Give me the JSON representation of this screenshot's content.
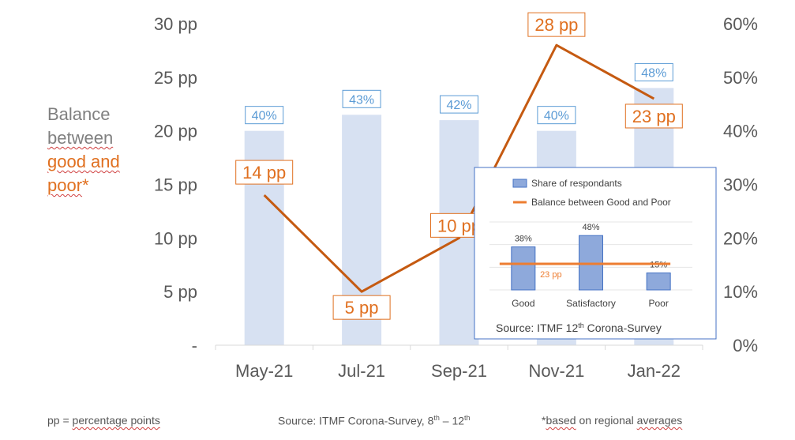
{
  "chart_data": {
    "type": "bar+line",
    "categories": [
      "May-21",
      "Jul-21",
      "Sep-21",
      "Nov-21",
      "Jan-22"
    ],
    "series": [
      {
        "name": "Share of respondants",
        "axis": "right",
        "values": [
          40,
          43,
          42,
          40,
          48
        ],
        "labels": [
          "40%",
          "43%",
          "42%",
          "40%",
          "48%"
        ]
      },
      {
        "name": "Balance between Good and Poor",
        "axis": "left",
        "values": [
          14,
          5,
          10,
          28,
          23
        ],
        "labels": [
          "14 pp",
          "5 pp",
          "10 pp",
          "28 pp",
          "23 pp"
        ]
      }
    ],
    "left_axis": {
      "ticks": [
        "-",
        "5 pp",
        "10 pp",
        "15 pp",
        "20 pp",
        "25 pp",
        "30 pp"
      ],
      "range": [
        0,
        30
      ]
    },
    "right_axis": {
      "ticks": [
        "0%",
        "10%",
        "20%",
        "30%",
        "40%",
        "50%",
        "60%"
      ],
      "range": [
        0,
        60
      ]
    },
    "ylabel_lines": [
      "Balance",
      "between",
      "good and",
      "poor*"
    ],
    "colors": {
      "bar": "#D7E1F2",
      "line": "#C55A11",
      "bar_label": "#5B9BD5",
      "line_label": "#E07020",
      "axis_text": "#595959"
    }
  },
  "inset": {
    "legend": [
      "Share of respondants",
      "Balance between Good and Poor"
    ],
    "categories": [
      "Good",
      "Satisfactory",
      "Poor"
    ],
    "bar_values": [
      38,
      48,
      15
    ],
    "bar_labels": [
      "38%",
      "48%",
      "15%"
    ],
    "line_label": "23 pp",
    "source_prefix": "Source: ITMF 12",
    "source_sup": "th",
    "source_suffix": " Corona-Survey",
    "colors": {
      "bar": "#8EA9DB",
      "bar_border": "#4472C4",
      "line": "#ED7D31",
      "border": "#4472C4"
    }
  },
  "footer": {
    "left": "pp = percentage points",
    "middle_prefix": "Source: ITMF Corona-Survey, 8",
    "middle_sup1": "th",
    "middle_mid": " – 12",
    "middle_sup2": "th",
    "right": "*based on regional averages"
  }
}
